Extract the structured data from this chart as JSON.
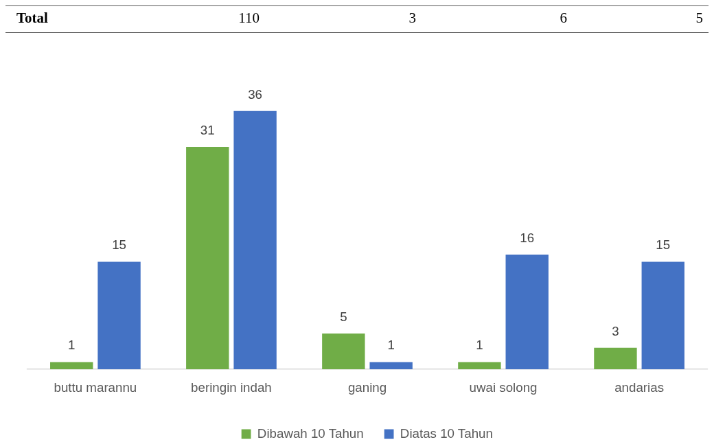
{
  "chart_data": {
    "type": "bar",
    "categories": [
      "buttu marannu",
      "beringin indah",
      "ganing",
      "uwai solong",
      "andarias"
    ],
    "series": [
      {
        "name": "Dibawah 10 Tahun",
        "color": "#70ad47",
        "values": [
          1,
          31,
          5,
          1,
          3
        ]
      },
      {
        "name": "Diatas 10 Tahun",
        "color": "#4472c4",
        "values": [
          15,
          36,
          1,
          16,
          15
        ]
      }
    ],
    "data_labels": true,
    "legend": "bottom",
    "grid": false,
    "tick_labels": "x",
    "annotations": [
      "Total",
      "110",
      "3",
      "6",
      "5"
    ]
  }
}
